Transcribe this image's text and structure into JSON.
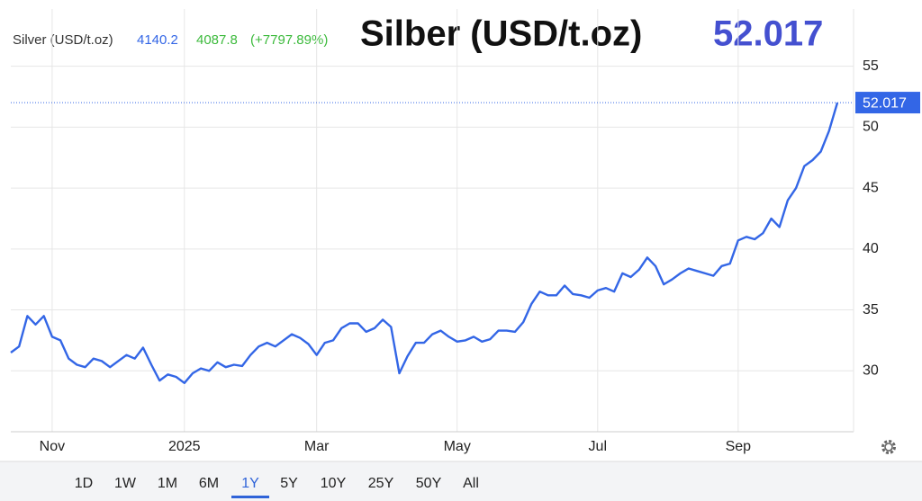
{
  "chart_data": {
    "type": "line",
    "title": "Silber (USD/t.oz)",
    "legend_stats": [
      "4140.2",
      "4087.8",
      "(+7797.89%)"
    ],
    "categories": [
      null,
      null,
      null,
      null,
      null,
      "Nov",
      null,
      null,
      null,
      null,
      null,
      null,
      null,
      null,
      null,
      null,
      null,
      null,
      null,
      null,
      null,
      "2025",
      null,
      null,
      null,
      null,
      null,
      null,
      null,
      null,
      null,
      null,
      null,
      null,
      null,
      null,
      null,
      "Mar",
      null,
      null,
      null,
      null,
      null,
      null,
      null,
      null,
      null,
      null,
      null,
      null,
      null,
      null,
      null,
      null,
      "May",
      null,
      null,
      null,
      null,
      null,
      null,
      null,
      null,
      null,
      null,
      null,
      null,
      null,
      null,
      null,
      null,
      "Jul",
      null,
      null,
      null,
      null,
      null,
      null,
      null,
      null,
      null,
      null,
      null,
      null,
      null,
      null,
      null,
      null,
      "Sep",
      null,
      null,
      null,
      null,
      null,
      null,
      null,
      null,
      null,
      null,
      null,
      null
    ],
    "series": [
      {
        "name": "Silver (USD/t.oz)",
        "color": "#3366e6",
        "values": [
          31.5,
          32,
          34.5,
          33.8,
          34.5,
          32.8,
          32.5,
          31,
          30.5,
          30.3,
          31,
          30.8,
          30.3,
          30.8,
          31.3,
          31,
          31.9,
          30.5,
          29.2,
          29.7,
          29.5,
          29,
          29.8,
          30.2,
          30,
          30.7,
          30.3,
          30.5,
          30.4,
          31.3,
          32,
          32.3,
          32,
          32.5,
          33,
          32.7,
          32.2,
          31.3,
          32.3,
          32.5,
          33.5,
          33.9,
          33.9,
          33.2,
          33.5,
          34.2,
          33.6,
          29.8,
          31.2,
          32.3,
          32.3,
          33,
          33.3,
          32.8,
          32.4,
          32.5,
          32.8,
          32.4,
          32.6,
          33.3,
          33.3,
          33.2,
          34,
          35.5,
          36.5,
          36.2,
          36.2,
          37,
          36.3,
          36.2,
          36,
          36.6,
          36.8,
          36.5,
          38,
          37.7,
          38.3,
          39.3,
          38.6,
          37.1,
          37.5,
          38,
          38.4,
          38.2,
          38,
          37.8,
          38.6,
          38.8,
          40.7,
          41,
          40.8,
          41.3,
          42.5,
          41.8,
          44,
          45,
          46.8,
          47.3,
          48,
          49.7,
          52.017
        ]
      }
    ],
    "ylim": [
      25,
      59.7
    ],
    "yticks": [
      30,
      35,
      40,
      45,
      50,
      55
    ],
    "grid": true,
    "range_buttons": [
      "1D",
      "1W",
      "1M",
      "6M",
      "1Y",
      "5Y",
      "10Y",
      "25Y",
      "50Y",
      "All"
    ],
    "selected_range": "1Y"
  }
}
